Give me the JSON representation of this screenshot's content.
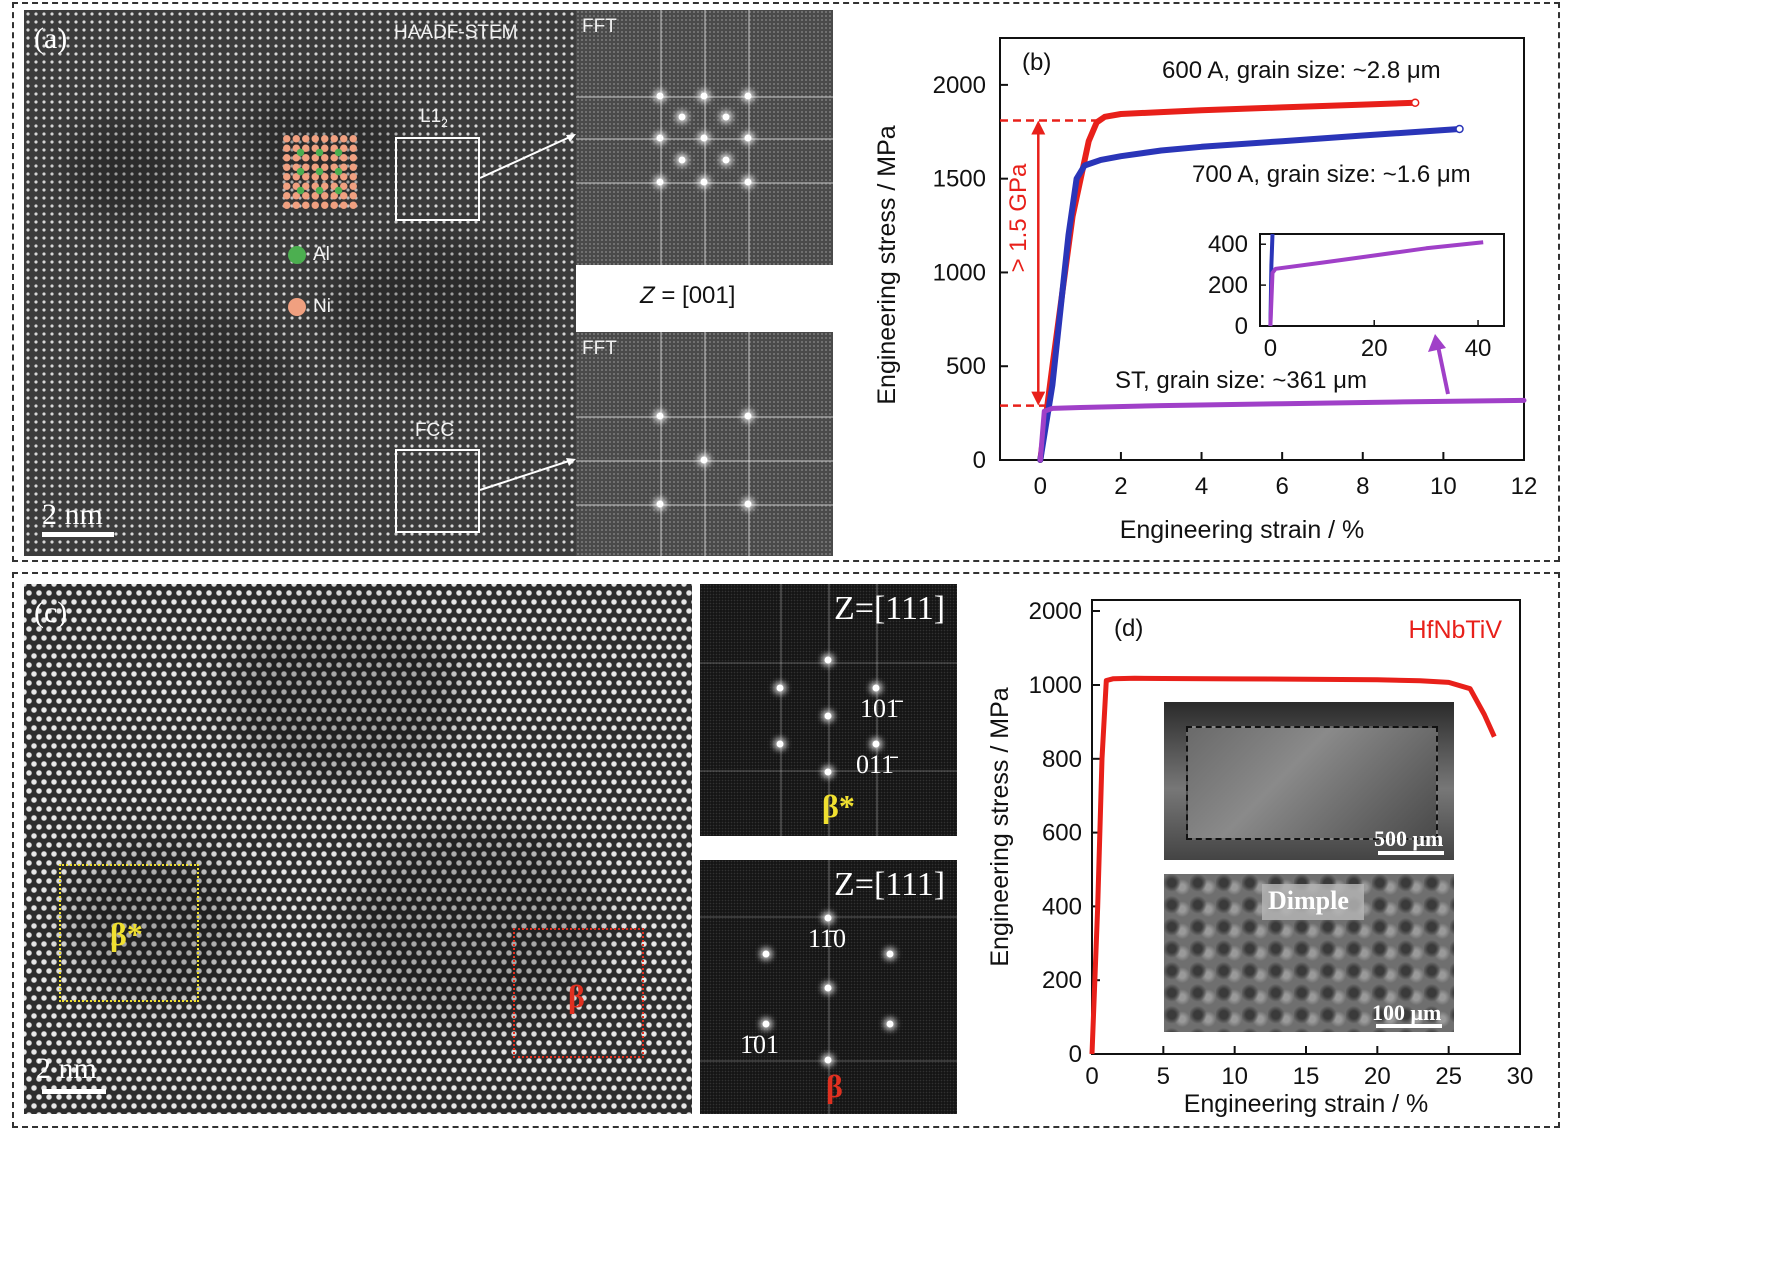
{
  "panel_a": {
    "label": "(a)",
    "title": "HAADF-STEM",
    "region_l12": "L1",
    "region_l12_sub": "2",
    "region_fcc": "FCC",
    "legend_al": "Al",
    "legend_ni": "Ni",
    "fft_top": "FFT",
    "fft_bottom": "FFT",
    "zone_axis_z": "Z",
    "zone_axis_rest": " = [001]",
    "scale": "2 nm",
    "colors": {
      "al": "#4caf50",
      "ni": "#f0a080"
    }
  },
  "panel_b": {
    "label": "(b)",
    "annotation": "> 1.5 GPa",
    "curve_600": "600 A, grain size: ~2.8 μm",
    "curve_700": "700 A, grain size: ~1.6 μm",
    "curve_st": "ST, grain size: ~361 μm"
  },
  "panel_c": {
    "label": "(c)",
    "region_beta_star": "β*",
    "region_beta": "β",
    "fft1_zone": "Z=[111]",
    "fft1_idx1": "101̄",
    "fft1_idx2": "011̄",
    "fft1_phase": "β*",
    "fft2_zone": "Z=[111]",
    "fft2_idx1": "11̄0",
    "fft2_idx2": "1̄01",
    "fft2_phase": "β",
    "scale": "2 nm",
    "colors": {
      "beta_star": "#f0e030",
      "beta": "#e03020"
    }
  },
  "panel_d": {
    "label": "(d)",
    "alloy": "HfNbTiV",
    "sem1_scale": "500 μm",
    "sem2_label": "Dimple",
    "sem2_scale": "100 μm"
  },
  "chart_data": [
    {
      "type": "line",
      "panel": "b",
      "xlabel": "Engineering strain / %",
      "ylabel": "Engineering stress / MPa",
      "xlim": [
        -1,
        12
      ],
      "ylim": [
        0,
        2250
      ],
      "xticks": [
        0,
        2,
        4,
        6,
        8,
        10,
        12
      ],
      "yticks": [
        0,
        500,
        1000,
        1500,
        2000
      ],
      "series": [
        {
          "color": "#e8201a",
          "x": [
            0,
            0.3,
            0.8,
            1.2,
            1.4,
            1.6,
            2,
            3,
            4,
            6,
            8,
            9.3
          ],
          "y": [
            0,
            500,
            1300,
            1700,
            1800,
            1830,
            1845,
            1855,
            1865,
            1880,
            1895,
            1905
          ]
        },
        {
          "color": "#2a35b8",
          "x": [
            0,
            0.3,
            0.7,
            0.9,
            1.1,
            1.5,
            2,
            3,
            4,
            6,
            8,
            10.4
          ],
          "y": [
            0,
            400,
            1200,
            1500,
            1570,
            1600,
            1620,
            1650,
            1670,
            1700,
            1730,
            1765
          ]
        },
        {
          "color": "#a040c8",
          "x": [
            0,
            0.1,
            0.3,
            1,
            3,
            6,
            9,
            12
          ],
          "y": [
            0,
            260,
            275,
            280,
            290,
            300,
            310,
            318
          ]
        }
      ],
      "inset": {
        "xlim": [
          -2,
          45
        ],
        "ylim": [
          0,
          450
        ],
        "xticks": [
          0,
          20,
          40
        ],
        "yticks": [
          0,
          200,
          400
        ],
        "series": [
          {
            "color": "#2a35b8",
            "x": [
              0,
              0.2,
              0.4
            ],
            "y": [
              0,
              300,
              450
            ]
          },
          {
            "color": "#a040c8",
            "x": [
              0,
              0.4,
              1,
              10,
              20,
              30,
              41
            ],
            "y": [
              0,
              260,
              280,
              310,
              345,
              380,
              410
            ]
          }
        ]
      }
    },
    {
      "type": "line",
      "panel": "d",
      "xlabel": "Engineering strain / %",
      "ylabel": "Engineering stress / MPa",
      "xlim": [
        0,
        30
      ],
      "ylim": [
        0,
        2050
      ],
      "xticks": [
        0,
        5,
        10,
        15,
        20,
        25,
        30
      ],
      "yticks": [
        0,
        200,
        400,
        600,
        800,
        1000,
        2000
      ],
      "series": [
        {
          "name": "HfNbTiV",
          "color": "#e8201a",
          "x": [
            0,
            0.4,
            0.7,
            1.0,
            1.5,
            3,
            5,
            10,
            15,
            20,
            23,
            25,
            26.5,
            27.5,
            28.2
          ],
          "y": [
            0,
            400,
            800,
            1060,
            1085,
            1090,
            1088,
            1083,
            1078,
            1070,
            1058,
            1035,
            990,
            920,
            860
          ]
        }
      ]
    }
  ]
}
